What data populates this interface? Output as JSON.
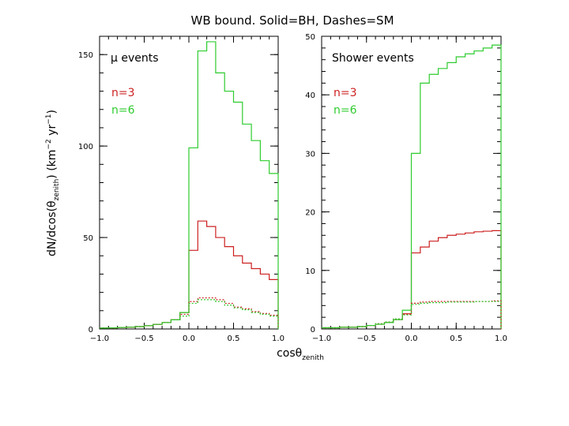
{
  "figure": {
    "title": "WB bound. Solid=BH, Dashes=SM",
    "ylabel_text": "dN/dcos(θ",
    "ylabel_sub": "zenith",
    "ylabel_text2": ") (km",
    "ylabel_sup1": "−2",
    "ylabel_text3": " yr",
    "ylabel_sup2": "−1",
    "ylabel_text4": ")",
    "xlabel_text": "cosθ",
    "xlabel_sub": "zenith",
    "colors": {
      "n3": "#cc2020",
      "n6": "#2ecc2e",
      "axis": "#000000"
    }
  },
  "chart_data": [
    {
      "type": "line",
      "title": "μ events",
      "legend": [
        {
          "label": "n=3",
          "color": "#cc2020"
        },
        {
          "label": "n=6",
          "color": "#2ecc2e"
        }
      ],
      "xlim": [
        -1.0,
        1.0
      ],
      "ylim": [
        0,
        160
      ],
      "xticks": [
        "−1.0",
        "−0.5",
        "0.0",
        "0.5",
        "1.0"
      ],
      "yticks": [
        "0",
        "50",
        "100",
        "150"
      ],
      "ytick_values": [
        0,
        50,
        100,
        150
      ],
      "bin_edges": [
        -1.0,
        -0.9,
        -0.8,
        -0.7,
        -0.6,
        -0.5,
        -0.4,
        -0.3,
        -0.2,
        -0.1,
        0.0,
        0.1,
        0.2,
        0.3,
        0.4,
        0.5,
        0.6,
        0.7,
        0.8,
        0.9,
        1.0
      ],
      "series": [
        {
          "name": "n=3",
          "style": "solid",
          "color": "#cc2020",
          "values": [
            0.5,
            0.6,
            0.8,
            1.0,
            1.3,
            1.8,
            2.5,
            3.5,
            5,
            9,
            43,
            59,
            56,
            50,
            45,
            40,
            36,
            33,
            30,
            27
          ]
        },
        {
          "name": "n=6",
          "style": "solid",
          "color": "#2ecc2e",
          "values": [
            0.5,
            0.6,
            0.8,
            1.0,
            1.3,
            1.8,
            2.5,
            3.5,
            5,
            9,
            99,
            152,
            157,
            140,
            130,
            124,
            112,
            103,
            92,
            85
          ]
        },
        {
          "name": "n=3",
          "style": "dashed",
          "color": "#cc2020",
          "values": [
            0.5,
            0.6,
            0.8,
            1.0,
            1.3,
            1.8,
            2.5,
            3.5,
            5,
            8,
            15,
            17,
            17,
            16,
            14,
            12,
            11,
            9.5,
            8.5,
            7.5
          ]
        },
        {
          "name": "n=6",
          "style": "dashed",
          "color": "#2ecc2e",
          "values": [
            0.5,
            0.6,
            0.8,
            1.0,
            1.3,
            1.8,
            2.5,
            3.5,
            5,
            7,
            14,
            16,
            16,
            15,
            13,
            11.5,
            10.5,
            9,
            8,
            7
          ]
        }
      ]
    },
    {
      "type": "line",
      "title": "Shower events",
      "legend": [
        {
          "label": "n=3",
          "color": "#cc2020"
        },
        {
          "label": "n=6",
          "color": "#2ecc2e"
        }
      ],
      "xlim": [
        -1.0,
        1.0
      ],
      "ylim": [
        0,
        50
      ],
      "xticks": [
        "−1.0",
        "−0.5",
        "0.0",
        "0.5",
        "1.0"
      ],
      "yticks": [
        "0",
        "10",
        "20",
        "30",
        "40",
        "50"
      ],
      "ytick_values": [
        0,
        10,
        20,
        30,
        40,
        50
      ],
      "bin_edges": [
        -1.0,
        -0.9,
        -0.8,
        -0.7,
        -0.6,
        -0.5,
        -0.4,
        -0.3,
        -0.2,
        -0.1,
        0.0,
        0.1,
        0.2,
        0.3,
        0.4,
        0.5,
        0.6,
        0.7,
        0.8,
        0.9,
        1.0
      ],
      "series": [
        {
          "name": "n=3",
          "style": "solid",
          "color": "#cc2020",
          "values": [
            0.2,
            0.2,
            0.3,
            0.3,
            0.4,
            0.6,
            0.8,
            1.1,
            1.6,
            2.6,
            13,
            14,
            15,
            15.6,
            16,
            16.2,
            16.4,
            16.6,
            16.7,
            16.8
          ]
        },
        {
          "name": "n=6",
          "style": "solid",
          "color": "#2ecc2e",
          "values": [
            0.2,
            0.2,
            0.3,
            0.3,
            0.4,
            0.6,
            0.8,
            1.1,
            1.6,
            3.2,
            30,
            42,
            43.5,
            44.5,
            45.5,
            46.5,
            47,
            47.5,
            48,
            48.5
          ]
        },
        {
          "name": "n=3",
          "style": "dashed",
          "color": "#cc2020",
          "values": [
            0.2,
            0.2,
            0.3,
            0.3,
            0.4,
            0.6,
            0.9,
            1.2,
            1.7,
            2.5,
            4.4,
            4.6,
            4.7,
            4.7,
            4.7,
            4.7,
            4.7,
            4.7,
            4.7,
            4.8
          ]
        },
        {
          "name": "n=6",
          "style": "dashed",
          "color": "#2ecc2e",
          "values": [
            0.2,
            0.2,
            0.3,
            0.3,
            0.4,
            0.6,
            0.9,
            1.2,
            1.7,
            2.4,
            4.2,
            4.4,
            4.5,
            4.5,
            4.6,
            4.6,
            4.6,
            4.7,
            4.7,
            4.7
          ]
        }
      ]
    }
  ]
}
